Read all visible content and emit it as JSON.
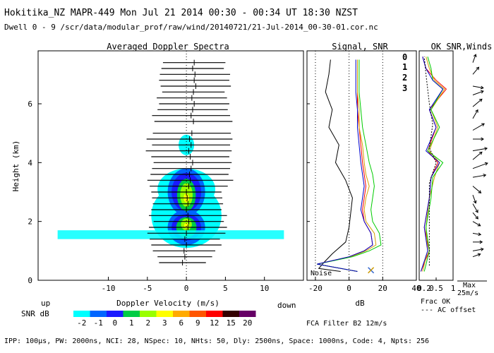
{
  "header": {
    "line1": "Hokitika_NZ  MAPR-449  Mon Jul 21 2014 00:30 - 00:34 UT 18:30 NZST",
    "line2": "Dwell  0 - 9  /scr/data/modular_prof/raw/wind/20140721/21-Jul-2014_00-30-01.cor.nc"
  },
  "footer": {
    "params": "IPP: 100μs, PW: 2000ns, NCI: 28, NSpec: 10, NHts: 50, Dly: 2500ns, Space: 1000ns, Code: 4, Npts: 256",
    "fca": "FCA Filter B2 12m/s"
  },
  "chart_data": [
    {
      "type": "heatmap",
      "title": "Averaged Doppler Spectra",
      "xlabel": "Doppler Velocity (m/s)",
      "ylabel": "Height (km)",
      "xlim": [
        -19,
        15
      ],
      "ylim": [
        0,
        7.8
      ],
      "xticks": [
        -10,
        -5,
        0,
        5,
        10
      ],
      "yticks": [
        0,
        2,
        4,
        6
      ],
      "left_label": "up",
      "right_label": "down",
      "heights_km": [
        0.6,
        0.8,
        1.0,
        1.2,
        1.4,
        1.6,
        1.8,
        2.0,
        2.2,
        2.4,
        2.6,
        2.8,
        3.0,
        3.2,
        3.4,
        3.6,
        3.8,
        4.0,
        4.2,
        4.4,
        4.6,
        4.8,
        5.0,
        5.4,
        5.6,
        5.8,
        6.0,
        6.2,
        6.4,
        6.6,
        6.8,
        7.0,
        7.2,
        7.4
      ],
      "noise_half_width_ms": [
        3.0,
        3.5,
        4.0,
        4.5,
        4.5,
        5.0,
        5.0,
        4.5,
        5.0,
        4.5,
        4.5,
        4.5,
        4.5,
        5.0,
        5.5,
        5.0,
        5.0,
        5.0,
        5.0,
        5.5,
        5.0,
        5.5,
        5.0,
        5.0,
        5.0,
        4.5,
        4.5,
        4.5,
        4.0,
        4.5,
        4.5,
        4.5,
        4.0,
        4.0
      ],
      "spectral_peak_ms": [
        -0.5,
        -0.2,
        -0.3,
        0.0,
        -0.2,
        0.0,
        0.2,
        0.3,
        0.2,
        0.0,
        0.2,
        0.1,
        0.0,
        0.3,
        0.5,
        0.4,
        0.6,
        0.8,
        0.5,
        0.3,
        0.6,
        0.4,
        0.7,
        0.9,
        0.6,
        0.8,
        1.0,
        0.7,
        0.9,
        1.2,
        1.0,
        1.1,
        0.8,
        1.0
      ],
      "snr_scale": {
        "label": "SNR dB",
        "values": [
          "-2",
          "-1",
          "0",
          "1",
          "2",
          "3",
          "6",
          "9",
          "12",
          "15",
          "20"
        ],
        "colors": [
          "#00ffff",
          "#0066ff",
          "#1a1aff",
          "#00cc44",
          "#99ff00",
          "#ffff00",
          "#ffaa00",
          "#ff5500",
          "#ff0000",
          "#330000",
          "#660066"
        ]
      }
    },
    {
      "type": "line",
      "title": "Signal, SNR",
      "xlabel": "dB",
      "xlim": [
        -25,
        40
      ],
      "xticks": [
        -20,
        0,
        20,
        40
      ],
      "ylim": [
        0,
        7.8
      ],
      "noise_label": "Noise",
      "series": [
        {
          "name": "signal",
          "color": "#000000",
          "points": [
            [
              -5,
              0.3
            ],
            [
              -18,
              0.4
            ],
            [
              -15,
              0.6
            ],
            [
              -10,
              0.9
            ],
            [
              -2,
              1.3
            ],
            [
              0,
              1.8
            ],
            [
              1,
              2.3
            ],
            [
              2,
              2.8
            ],
            [
              -2,
              3.4
            ],
            [
              -8,
              4.0
            ],
            [
              -6,
              4.6
            ],
            [
              -12,
              5.2
            ],
            [
              -10,
              5.8
            ],
            [
              -14,
              6.4
            ],
            [
              -12,
              7.0
            ],
            [
              -11,
              7.5
            ]
          ]
        },
        {
          "name": "SNR beam 0",
          "color": "#ff0000",
          "points": [
            [
              5,
              0.3
            ],
            [
              -19,
              0.55
            ],
            [
              0,
              0.8
            ],
            [
              9,
              1.0
            ],
            [
              14,
              1.2
            ],
            [
              13,
              1.6
            ],
            [
              9,
              2.0
            ],
            [
              8,
              2.4
            ],
            [
              9,
              2.8
            ],
            [
              10,
              3.2
            ],
            [
              9,
              3.6
            ],
            [
              8,
              4.0
            ],
            [
              7,
              4.6
            ],
            [
              6,
              5.2
            ],
            [
              5,
              5.8
            ],
            [
              5,
              6.4
            ],
            [
              5,
              7.0
            ],
            [
              5,
              7.5
            ]
          ]
        },
        {
          "name": "SNR beam 1",
          "color": "#d4a000",
          "points": [
            [
              5,
              0.3
            ],
            [
              -19,
              0.55
            ],
            [
              1,
              0.8
            ],
            [
              10,
              1.0
            ],
            [
              16,
              1.2
            ],
            [
              15,
              1.6
            ],
            [
              10,
              2.0
            ],
            [
              9,
              2.4
            ],
            [
              10,
              2.8
            ],
            [
              12,
              3.2
            ],
            [
              10,
              3.6
            ],
            [
              9,
              4.0
            ],
            [
              8,
              4.6
            ],
            [
              6,
              5.2
            ],
            [
              6,
              5.8
            ],
            [
              5,
              6.4
            ],
            [
              5,
              7.0
            ],
            [
              5,
              7.5
            ]
          ]
        },
        {
          "name": "SNR beam 2",
          "color": "#00cc00",
          "points": [
            [
              5,
              0.3
            ],
            [
              -19,
              0.55
            ],
            [
              2,
              0.8
            ],
            [
              12,
              1.0
            ],
            [
              19,
              1.2
            ],
            [
              18,
              1.6
            ],
            [
              14,
              2.0
            ],
            [
              13,
              2.4
            ],
            [
              14,
              2.8
            ],
            [
              15,
              3.2
            ],
            [
              14,
              3.6
            ],
            [
              12,
              4.0
            ],
            [
              10,
              4.6
            ],
            [
              8,
              5.2
            ],
            [
              7,
              5.8
            ],
            [
              6,
              6.4
            ],
            [
              6,
              7.0
            ],
            [
              6,
              7.5
            ]
          ]
        },
        {
          "name": "SNR beam 3",
          "color": "#0000cc",
          "points": [
            [
              5,
              0.3
            ],
            [
              -19,
              0.55
            ],
            [
              0,
              0.8
            ],
            [
              9,
              1.0
            ],
            [
              14,
              1.2
            ],
            [
              13,
              1.6
            ],
            [
              9,
              2.0
            ],
            [
              7,
              2.4
            ],
            [
              8,
              2.8
            ],
            [
              9,
              3.2
            ],
            [
              8,
              3.6
            ],
            [
              7,
              4.0
            ],
            [
              6,
              4.6
            ],
            [
              5,
              5.2
            ],
            [
              5,
              5.8
            ],
            [
              4,
              6.4
            ],
            [
              4,
              7.0
            ],
            [
              4,
              7.5
            ]
          ]
        }
      ],
      "markers": [
        {
          "x": 13,
          "y": 0.15,
          "symbol": "x"
        }
      ]
    },
    {
      "type": "line",
      "title": "OK SNR,Winds",
      "beam_labels": [
        {
          "label": "0",
          "color": "#ff0000"
        },
        {
          "label": "1",
          "color": "#d4a000"
        },
        {
          "label": "2",
          "color": "#00cc00"
        },
        {
          "label": "3",
          "color": "#0000cc"
        }
      ],
      "xlabel": "Frac OK",
      "x2label": "AC offset",
      "xlim": [
        0,
        1
      ],
      "xticks": [
        0.5,
        1
      ],
      "xtick_labels": [
        "0.5",
        "1"
      ],
      "leading_tick_label": "0.2",
      "wind_max_label": "Max",
      "wind_max_value": "25m/s",
      "series": [
        {
          "name": "frac ok 0",
          "color": "#ff0000",
          "points": [
            [
              0.05,
              0.3
            ],
            [
              0.3,
              1.0
            ],
            [
              0.15,
              1.8
            ],
            [
              0.3,
              2.8
            ],
            [
              0.35,
              3.5
            ],
            [
              0.55,
              4.0
            ],
            [
              0.25,
              4.4
            ],
            [
              0.5,
              5.2
            ],
            [
              0.3,
              5.8
            ],
            [
              0.8,
              6.5
            ],
            [
              0.5,
              6.8
            ],
            [
              0.2,
              7.2
            ],
            [
              0.1,
              7.6
            ]
          ]
        },
        {
          "name": "frac ok 1",
          "color": "#d4a000",
          "points": [
            [
              0.1,
              0.3
            ],
            [
              0.25,
              1.0
            ],
            [
              0.2,
              1.8
            ],
            [
              0.3,
              2.8
            ],
            [
              0.45,
              3.5
            ],
            [
              0.6,
              4.0
            ],
            [
              0.3,
              4.4
            ],
            [
              0.55,
              5.2
            ],
            [
              0.35,
              5.8
            ],
            [
              0.75,
              6.5
            ],
            [
              0.45,
              6.8
            ],
            [
              0.3,
              7.2
            ],
            [
              0.2,
              7.6
            ]
          ]
        },
        {
          "name": "frac ok 2",
          "color": "#00cc00",
          "points": [
            [
              0.15,
              0.3
            ],
            [
              0.3,
              1.0
            ],
            [
              0.2,
              1.8
            ],
            [
              0.35,
              2.8
            ],
            [
              0.4,
              3.5
            ],
            [
              0.7,
              4.0
            ],
            [
              0.25,
              4.4
            ],
            [
              0.6,
              5.2
            ],
            [
              0.35,
              5.8
            ],
            [
              0.7,
              6.5
            ],
            [
              0.4,
              6.8
            ],
            [
              0.35,
              7.2
            ],
            [
              0.25,
              7.6
            ]
          ]
        },
        {
          "name": "frac ok 3",
          "color": "#0000cc",
          "points": [
            [
              0.05,
              0.3
            ],
            [
              0.25,
              1.0
            ],
            [
              0.15,
              1.8
            ],
            [
              0.3,
              2.8
            ],
            [
              0.35,
              3.5
            ],
            [
              0.6,
              4.0
            ],
            [
              0.2,
              4.4
            ],
            [
              0.5,
              5.2
            ],
            [
              0.3,
              5.8
            ],
            [
              0.7,
              6.5
            ],
            [
              0.4,
              6.8
            ],
            [
              0.2,
              7.2
            ],
            [
              0.1,
              7.6
            ]
          ]
        },
        {
          "name": "ac offset",
          "color": "#000000",
          "points": [
            [
              0.3,
              0.5
            ],
            [
              0.3,
              1.5
            ],
            [
              0.3,
              2.5
            ],
            [
              0.3,
              3.3
            ],
            [
              0.5,
              4.0
            ],
            [
              0.3,
              4.5
            ],
            [
              0.4,
              5.3
            ],
            [
              0.3,
              6.0
            ],
            [
              0.2,
              7.0
            ],
            [
              0.15,
              7.6
            ]
          ]
        }
      ],
      "winds": [
        {
          "h": 0.8,
          "dir": 250,
          "spd": 6
        },
        {
          "h": 1.0,
          "dir": 260,
          "spd": 10
        },
        {
          "h": 1.3,
          "dir": 270,
          "spd": 8
        },
        {
          "h": 1.6,
          "dir": 280,
          "spd": 6
        },
        {
          "h": 2.0,
          "dir": 300,
          "spd": 7
        },
        {
          "h": 2.3,
          "dir": 320,
          "spd": 6
        },
        {
          "h": 2.6,
          "dir": 330,
          "spd": 9
        },
        {
          "h": 2.9,
          "dir": 340,
          "spd": 7
        },
        {
          "h": 3.2,
          "dir": 310,
          "spd": 10
        },
        {
          "h": 3.5,
          "dir": 260,
          "spd": 14
        },
        {
          "h": 3.8,
          "dir": 250,
          "spd": 18
        },
        {
          "h": 4.1,
          "dir": 230,
          "spd": 12
        },
        {
          "h": 4.4,
          "dir": 260,
          "spd": 16
        },
        {
          "h": 4.8,
          "dir": 270,
          "spd": 10
        },
        {
          "h": 5.1,
          "dir": 240,
          "spd": 14
        },
        {
          "h": 5.5,
          "dir": 210,
          "spd": 9
        },
        {
          "h": 5.9,
          "dir": 230,
          "spd": 12
        },
        {
          "h": 6.3,
          "dir": 250,
          "spd": 11
        },
        {
          "h": 6.6,
          "dir": 280,
          "spd": 10
        },
        {
          "h": 7.0,
          "dir": 220,
          "spd": 8
        },
        {
          "h": 7.4,
          "dir": 200,
          "spd": 7
        }
      ]
    }
  ]
}
